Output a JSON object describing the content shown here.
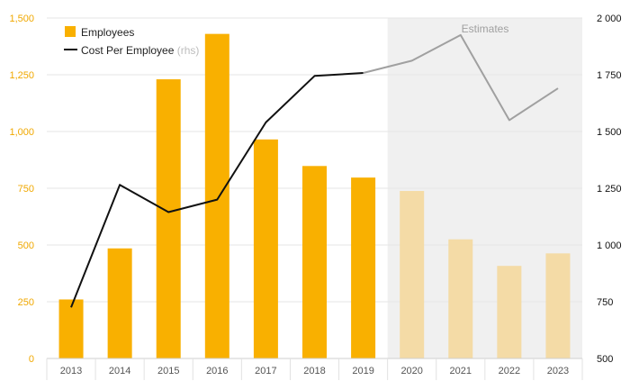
{
  "chart_data": {
    "type": "bar",
    "categories": [
      "2013",
      "2014",
      "2015",
      "2016",
      "2017",
      "2018",
      "2019",
      "2020",
      "2021",
      "2022",
      "2023"
    ],
    "estimate_start": "2020",
    "estimates_label": "Estimates",
    "series": [
      {
        "name": "Employees",
        "type": "bar",
        "axis": "left",
        "values": [
          260,
          485,
          1230,
          1430,
          965,
          848,
          797,
          738,
          525,
          408,
          463
        ]
      },
      {
        "name": "Cost Per Employee",
        "name_suffix": "(rhs)",
        "type": "line",
        "axis": "right",
        "values": [
          725,
          1265,
          1145,
          1200,
          1540,
          1745,
          1758,
          1812,
          1925,
          1550,
          1690
        ]
      }
    ],
    "y_left": {
      "min": 0,
      "max": 1500,
      "ticks": [
        "0",
        "250",
        "500",
        "750",
        "1,000",
        "1,250",
        "1,500"
      ]
    },
    "y_right": {
      "min": 500,
      "max": 2000,
      "ticks": [
        "500",
        "750",
        "1 000",
        "1 250",
        "1 500",
        "1 750",
        "2 000"
      ]
    },
    "legend_position": "top-left",
    "grid": true
  },
  "colors": {
    "bar": "#f9b000",
    "bar_estimate": "#f4dba6",
    "line": "#111111",
    "line_estimate": "#a0a0a0",
    "estimate_band": "#f0f0f0",
    "left_axis_text": "#f0a800",
    "right_axis_text": "#111111",
    "grid": "#e6e6e6"
  }
}
